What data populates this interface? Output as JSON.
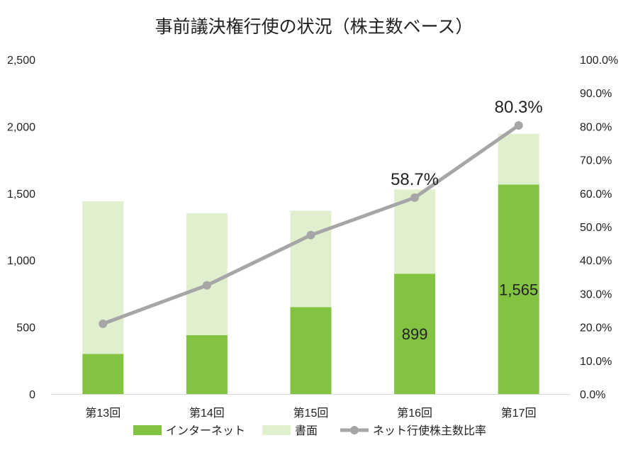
{
  "chart_data": {
    "type": "bar",
    "title": "事前議決権行使の状況（株主数ベース）",
    "categories": [
      "第13回",
      "第14回",
      "第15回",
      "第16回",
      "第17回"
    ],
    "series": [
      {
        "name": "インターネット",
        "kind": "bar-stacked",
        "axis": "left",
        "color": "#82c341",
        "values": [
          300,
          440,
          650,
          899,
          1565
        ]
      },
      {
        "name": "書面",
        "kind": "bar-stacked",
        "axis": "left",
        "color": "#e0f0cf",
        "values": [
          1140,
          910,
          720,
          630,
          380
        ]
      },
      {
        "name": "ネット行使株主数比率",
        "kind": "line",
        "axis": "right",
        "color": "#a6a6a6",
        "values": [
          21.0,
          32.5,
          47.5,
          58.7,
          80.3
        ]
      }
    ],
    "left_axis": {
      "min": 0,
      "max": 2500,
      "ticks": [
        "0",
        "500",
        "1,000",
        "1,500",
        "2,000",
        "2,500"
      ]
    },
    "right_axis": {
      "min": 0,
      "max": 100,
      "ticks": [
        "0.0%",
        "10.0%",
        "20.0%",
        "30.0%",
        "40.0%",
        "50.0%",
        "60.0%",
        "70.0%",
        "80.0%",
        "90.0%",
        "100.0%"
      ]
    },
    "data_labels": [
      {
        "series": 0,
        "index": 3,
        "text": "899"
      },
      {
        "series": 0,
        "index": 4,
        "text": "1,565"
      },
      {
        "series": 2,
        "index": 3,
        "text": "58.7%"
      },
      {
        "series": 2,
        "index": 4,
        "text": "80.3%"
      }
    ],
    "legend": [
      "インターネット",
      "書面",
      "ネット行使株主数比率"
    ],
    "legend_position": "bottom",
    "grid": false
  }
}
